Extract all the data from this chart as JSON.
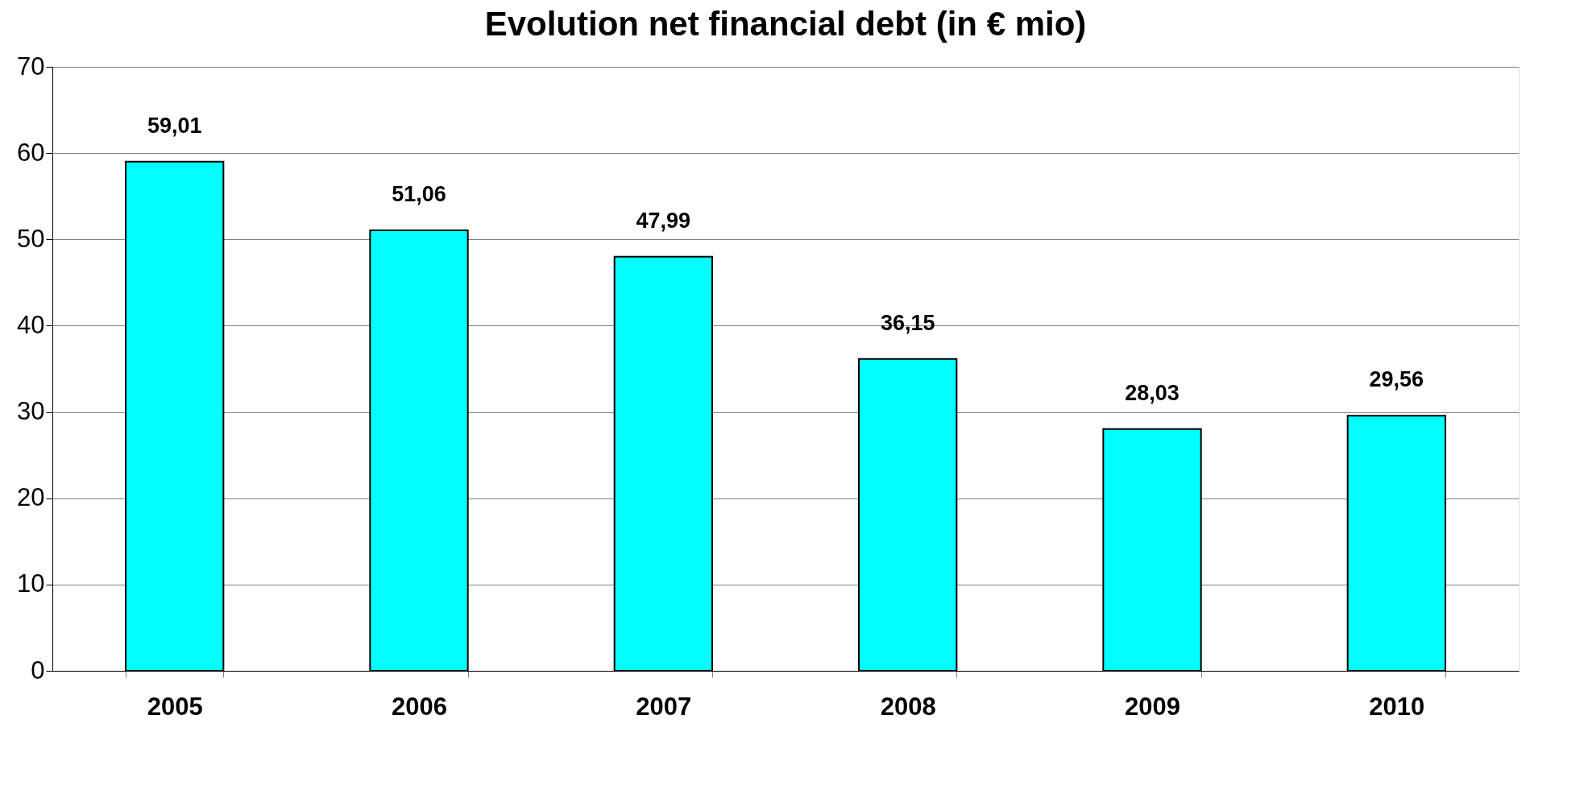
{
  "chart_data": {
    "type": "bar",
    "title": "Evolution net financial debt (in € mio)",
    "categories": [
      "2005",
      "2006",
      "2007",
      "2008",
      "2009",
      "2010"
    ],
    "values": [
      59.01,
      51.06,
      47.99,
      36.15,
      28.03,
      29.56
    ],
    "value_labels": [
      "59,01",
      "51,06",
      "47,99",
      "36,15",
      "28,03",
      "29,56"
    ],
    "color": "#00ffff",
    "ylim": [
      0,
      70
    ],
    "yticks": [
      0,
      10,
      20,
      30,
      40,
      50,
      60,
      70
    ],
    "grid": "y"
  }
}
